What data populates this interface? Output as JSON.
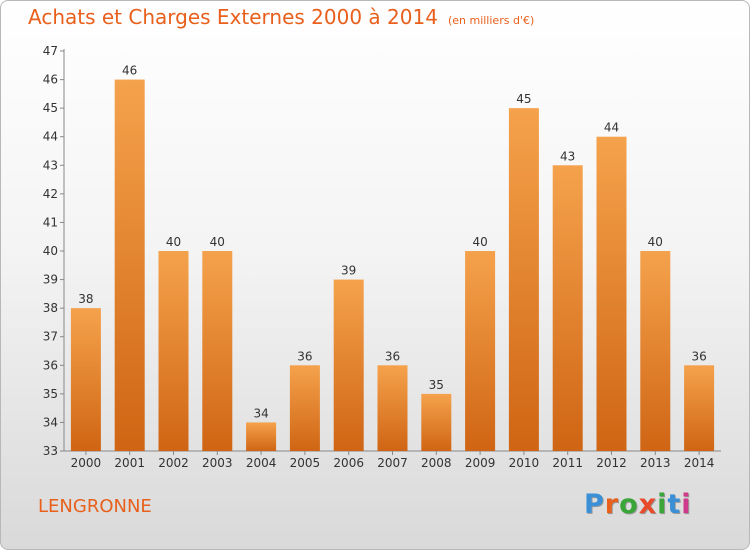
{
  "title": "Achats et Charges Externes 2000 à 2014",
  "unit_note": "(en milliers d'€)",
  "place": "LENGRONNE",
  "brand": {
    "text": "Proxiti",
    "letter_colors": [
      "#3a8fd6",
      "#e8601c",
      "#3aa63a",
      "#e84a2a",
      "#3aa63a",
      "#3a8fd6",
      "#d03a8a"
    ]
  },
  "chart_data": {
    "type": "bar",
    "categories": [
      "2000",
      "2001",
      "2002",
      "2003",
      "2004",
      "2005",
      "2006",
      "2007",
      "2008",
      "2009",
      "2010",
      "2011",
      "2012",
      "2013",
      "2014"
    ],
    "values": [
      38,
      46,
      40,
      40,
      34,
      36,
      39,
      36,
      35,
      40,
      45,
      43,
      44,
      40,
      36
    ],
    "ylim": [
      33,
      47
    ],
    "yticks": [
      33,
      34,
      35,
      36,
      37,
      38,
      39,
      40,
      41,
      42,
      43,
      44,
      45,
      46,
      47
    ],
    "grid": false,
    "bar_color_top": "#f5a24c",
    "bar_color_bottom": "#cf6514",
    "axis_color": "#888888",
    "label_color": "#333333"
  }
}
